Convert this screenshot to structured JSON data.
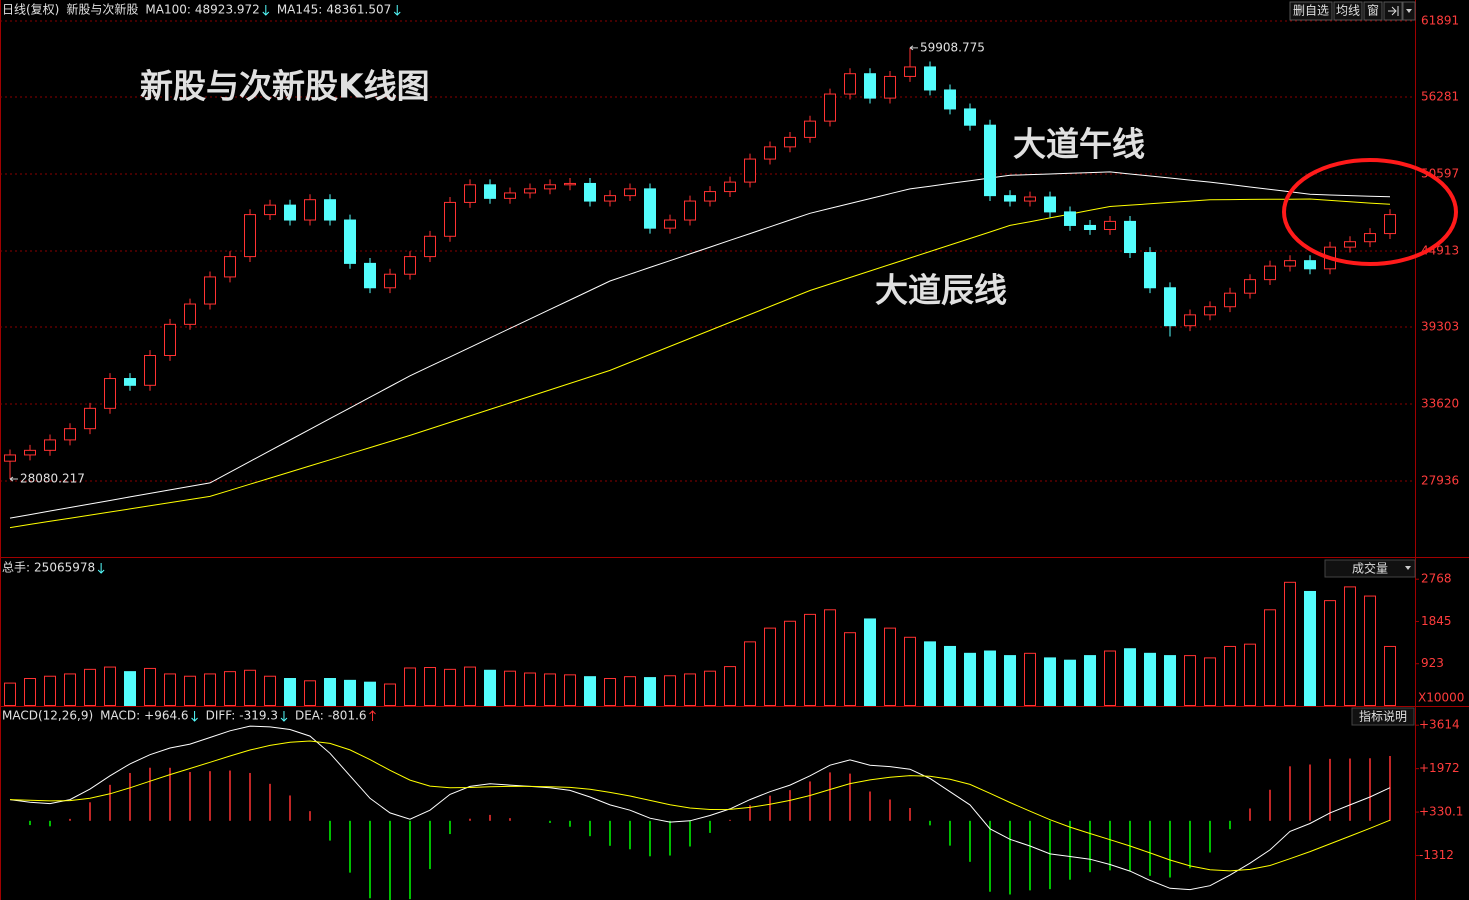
{
  "toolbar": [
    "删自选",
    "均线",
    "窗"
  ],
  "chart_data": [
    {
      "type": "candlestick",
      "period": "日线(复权)",
      "title": "新股与次新股",
      "annotations": [
        "新股与次新股K线图",
        "大道午线",
        "大道辰线"
      ],
      "up_color": "#ff3232",
      "down_color": "#54fcfc",
      "ylim": [
        22327,
        63441
      ],
      "yticks": [
        27936,
        33620,
        39303,
        44913,
        50597,
        56281,
        61891
      ],
      "grid": true,
      "open": [
        29400,
        29860,
        30200,
        30970,
        31800,
        33300,
        35500,
        35000,
        37200,
        39500,
        41000,
        43000,
        44500,
        47600,
        48300,
        47200,
        48700,
        47200,
        44000,
        42200,
        43200,
        44500,
        46000,
        48500,
        49800,
        48800,
        49200,
        49500,
        49800,
        49900,
        48600,
        49000,
        49500,
        46600,
        47200,
        48600,
        49300,
        50000,
        51700,
        52600,
        53300,
        54500,
        56500,
        58000,
        56200,
        57800,
        58500,
        56800,
        55400,
        54200,
        49000,
        48600,
        48900,
        47800,
        46800,
        46500,
        47100,
        44800,
        42200,
        39400,
        40200,
        40800,
        41800,
        42800,
        43800,
        44200,
        43600,
        45200,
        45600,
        46200
      ],
      "high": [
        30260,
        30600,
        31370,
        32200,
        33700,
        35900,
        35900,
        37600,
        39900,
        41400,
        43400,
        44900,
        48000,
        48700,
        48700,
        49100,
        49100,
        47600,
        44400,
        43600,
        44900,
        46400,
        48900,
        50200,
        50200,
        49600,
        49900,
        50200,
        50300,
        50300,
        49400,
        49900,
        49900,
        47600,
        49000,
        49700,
        50400,
        52100,
        53000,
        53700,
        54900,
        56900,
        58400,
        58400,
        58200,
        59908.775,
        58900,
        57200,
        55800,
        54600,
        49400,
        49300,
        49300,
        48200,
        47200,
        47500,
        47500,
        45200,
        42600,
        40600,
        41200,
        42200,
        43200,
        44200,
        44600,
        44600,
        45600,
        46000,
        46600,
        48000
      ],
      "low": [
        28080.217,
        29460,
        29800,
        30570,
        31400,
        32900,
        34600,
        34600,
        36800,
        39100,
        40600,
        42600,
        44100,
        47200,
        46800,
        46800,
        46800,
        43600,
        41800,
        41800,
        42800,
        44100,
        45600,
        48100,
        48400,
        48400,
        48800,
        49100,
        49400,
        48200,
        48200,
        48600,
        46200,
        46200,
        46800,
        48200,
        48900,
        49600,
        51300,
        52200,
        52900,
        54100,
        56100,
        55800,
        55800,
        57400,
        56400,
        55000,
        53800,
        48600,
        48200,
        48200,
        47400,
        46400,
        46100,
        46100,
        44400,
        41800,
        38600,
        39000,
        39800,
        40400,
        41400,
        42400,
        43400,
        43200,
        43200,
        44800,
        45200,
        45800
      ],
      "close": [
        29860,
        30200,
        30970,
        31800,
        33300,
        35500,
        35000,
        37200,
        39500,
        41000,
        43000,
        44500,
        47600,
        48300,
        47200,
        48700,
        47200,
        44000,
        42200,
        43200,
        44500,
        46000,
        48500,
        49800,
        48800,
        49200,
        49500,
        49800,
        49900,
        48600,
        49000,
        49500,
        46600,
        47200,
        48600,
        49300,
        50000,
        51700,
        52600,
        53300,
        54500,
        56500,
        58000,
        56200,
        57800,
        58500,
        56800,
        55400,
        54200,
        49000,
        48600,
        48900,
        47800,
        46800,
        46500,
        47100,
        44800,
        42200,
        39400,
        40200,
        40800,
        41800,
        42800,
        43800,
        44200,
        43600,
        45200,
        45600,
        46200,
        47600
      ],
      "series": [
        {
          "name": "MA100:",
          "color": "#ffffff",
          "values": [
            25200,
            25460,
            25720,
            25980,
            26240,
            26500,
            26760,
            27020,
            27280,
            27540,
            27800,
            28590,
            29380,
            30170,
            30960,
            31750,
            32540,
            33330,
            34120,
            34910,
            35700,
            36400,
            37100,
            37800,
            38500,
            39200,
            39900,
            40600,
            41300,
            42000,
            42700,
            43200,
            43700,
            44200,
            44700,
            45200,
            45700,
            46200,
            46700,
            47200,
            47700,
            48060,
            48420,
            48780,
            49140,
            49500,
            49700,
            49900,
            50100,
            50300,
            50500,
            50550,
            50600,
            50650,
            50700,
            50750,
            50600,
            50450,
            50300,
            50150,
            50000,
            49820,
            49640,
            49460,
            49280,
            49100,
            49050,
            49000,
            48960,
            48923.972
          ]
        },
        {
          "name": "MA145:",
          "color": "#ffff00",
          "values": [
            24500,
            24730,
            24960,
            25190,
            25420,
            25650,
            25880,
            26110,
            26340,
            26570,
            26800,
            27250,
            27700,
            28150,
            28600,
            29050,
            29500,
            29950,
            30400,
            30850,
            31300,
            31780,
            32260,
            32740,
            33220,
            33700,
            34180,
            34660,
            35140,
            35620,
            36100,
            36690,
            37280,
            37870,
            38460,
            39050,
            39640,
            40230,
            40820,
            41410,
            42000,
            42480,
            42960,
            43440,
            43920,
            44400,
            44880,
            45360,
            45840,
            46320,
            46800,
            47080,
            47360,
            47640,
            47920,
            48200,
            48300,
            48400,
            48500,
            48600,
            48700,
            48710,
            48720,
            48730,
            48740,
            48750,
            48650,
            48550,
            48450,
            48361.507
          ]
        }
      ]
    },
    {
      "type": "bar",
      "title": "总手:",
      "total": 25065978,
      "indicator_button": "成交量",
      "unit": "X10000",
      "ylim": [
        0,
        3187
      ],
      "yticks": [
        923,
        1845,
        2768
      ],
      "values": [
        500,
        600,
        650,
        700,
        800,
        850,
        750,
        820,
        700,
        650,
        700,
        750,
        780,
        650,
        600,
        550,
        600,
        560,
        520,
        480,
        830,
        840,
        800,
        850,
        780,
        760,
        720,
        700,
        680,
        640,
        600,
        640,
        620,
        660,
        700,
        760,
        860,
        1400,
        1700,
        1850,
        2000,
        2100,
        1600,
        1900,
        1700,
        1500,
        1400,
        1300,
        1150,
        1200,
        1100,
        1150,
        1050,
        1000,
        1100,
        1200,
        1250,
        1150,
        1100,
        1100,
        1050,
        1300,
        1350,
        2100,
        2700,
        2500,
        2300,
        2600,
        2400,
        1300
      ]
    },
    {
      "type": "macd",
      "title": "MACD(12,26,9)",
      "indicator_button": "指标说明",
      "ylim": [
        -2992,
        4263
      ],
      "yticks": [
        -1312,
        {
          "value": 330.1,
          "label": "+330.1"
        },
        {
          "value": 1972,
          "label": "+1972"
        },
        {
          "value": 3614,
          "label": "+3614"
        }
      ],
      "readouts": [
        {
          "value": 964.6,
          "label": "+964.6"
        },
        -319.3,
        -801.6
      ],
      "negative_color": "#00ff00",
      "series": [
        {
          "name": "MACD:",
          "color": "#ff3232",
          "values": [
            0,
            -160,
            -208,
            74,
            700,
            1360,
            1808,
            2006,
            2004,
            1844,
            1876,
            1900,
            1808,
            1398,
            958,
            366,
            -748,
            -1958,
            -2926,
            -3220,
            -2960,
            -1824,
            -500,
            80,
            224,
            100,
            0,
            -80,
            -224,
            -580,
            -944,
            -1076,
            -1340,
            -1312,
            -970,
            -456,
            36,
            588,
            950,
            1160,
            1488,
            1830,
            1784,
            1108,
            806,
            484,
            -172,
            -938,
            -1550,
            -2680,
            -2784,
            -2628,
            -2582,
            -2226,
            -1940,
            -1872,
            -1898,
            -2078,
            -2142,
            -1794,
            -1196,
            -316,
            468,
            1174,
            2060,
            2128,
            2342,
            2354,
            2364,
            2450
          ]
        },
        {
          "name": "DIFF:",
          "color": "#ffffff",
          "values": [
            800,
            700,
            650,
            800,
            1200,
            1700,
            2150,
            2500,
            2750,
            2900,
            3150,
            3400,
            3580,
            3550,
            3450,
            3200,
            2550,
            1700,
            850,
            300,
            60,
            400,
            1000,
            1300,
            1400,
            1350,
            1300,
            1250,
            1150,
            900,
            600,
            400,
            100,
            -50,
            0,
            200,
            450,
            800,
            1100,
            1350,
            1700,
            2100,
            2300,
            2100,
            2050,
            1950,
            1600,
            1100,
            600,
            -300,
            -700,
            -950,
            -1250,
            -1350,
            -1450,
            -1650,
            -1900,
            -2250,
            -2550,
            -2600,
            -2450,
            -2050,
            -1600,
            -1100,
            -400,
            -100,
            300,
            600,
            900,
            1250
          ]
        },
        {
          "name": "DEA:",
          "color": "#ffff00",
          "values": [
            800,
            780,
            754,
            763,
            850,
            1020,
            1246,
            1497,
            1748,
            1978,
            2212,
            2450,
            2676,
            2851,
            2971,
            3017,
            2924,
            2679,
            2313,
            1910,
            1540,
            1312,
            1250,
            1260,
            1288,
            1300,
            1300,
            1290,
            1262,
            1190,
            1072,
            938,
            770,
            606,
            485,
            428,
            432,
            506,
            625,
            770,
            956,
            1185,
            1408,
            1546,
            1647,
            1708,
            1686,
            1569,
            1375,
            1040,
            692,
            364,
            41,
            -237,
            -480,
            -714,
            -951,
            -1211,
            -1479,
            -1703,
            -1852,
            -1892,
            -1834,
            -1687,
            -1430,
            -1164,
            -871,
            -577,
            -282,
            25
          ]
        }
      ]
    }
  ]
}
